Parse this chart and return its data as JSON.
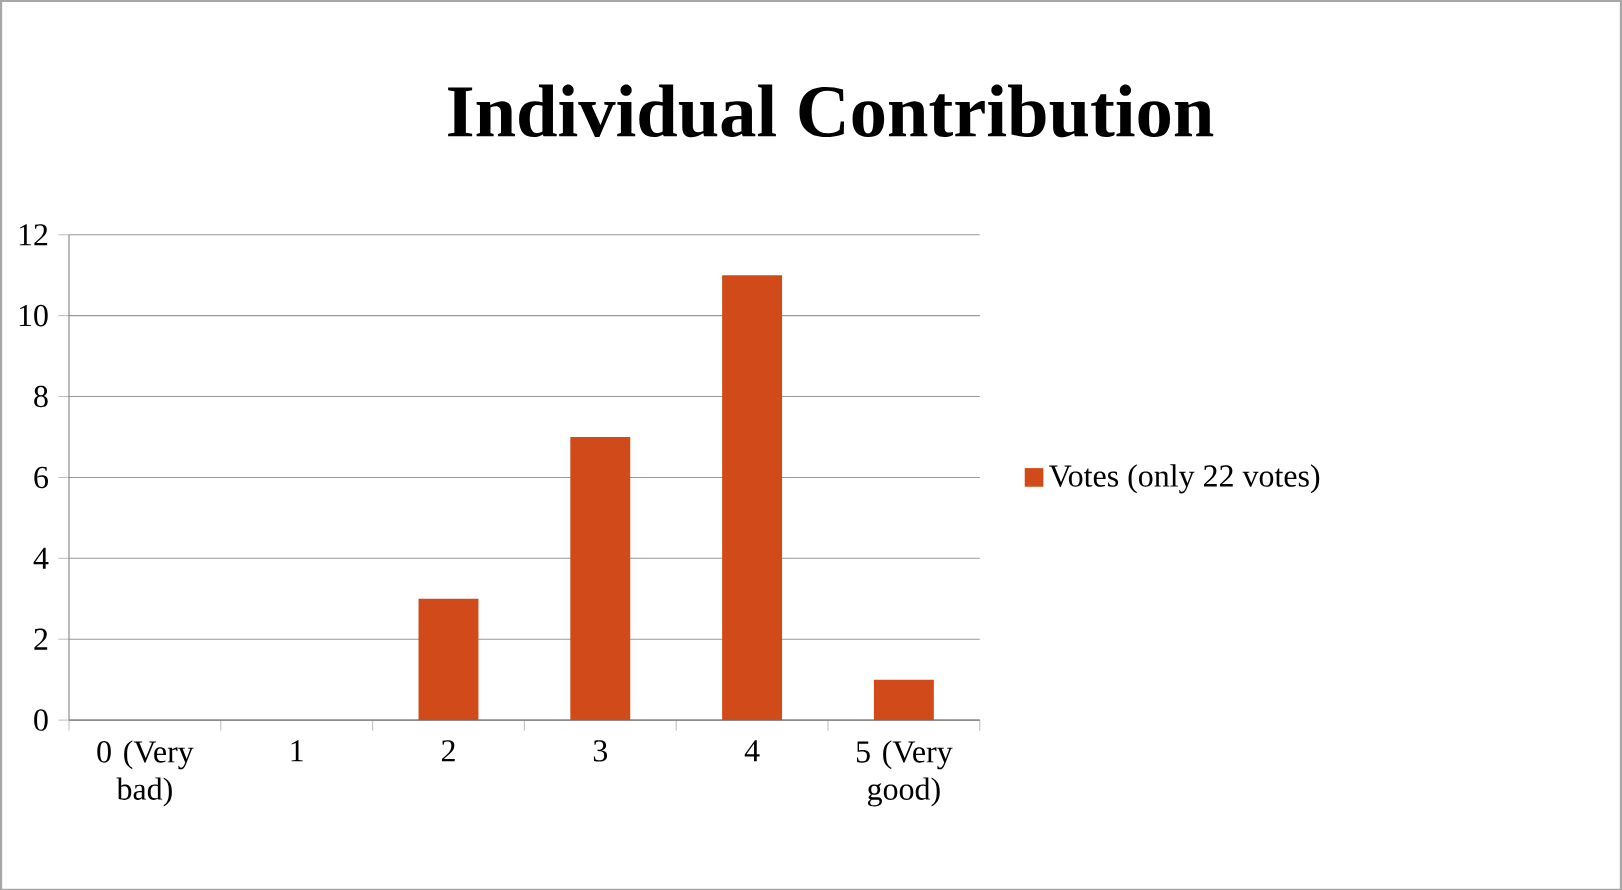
{
  "chart_data": {
    "type": "bar",
    "title": "Individual Contribution",
    "categories": [
      "0 (Very bad)",
      "1",
      "2",
      "3",
      "4",
      "5 (Very good)"
    ],
    "series": [
      {
        "name": "Votes (only 22 votes)",
        "color": "#d14a19",
        "values": [
          0,
          0,
          3,
          7,
          11,
          1
        ]
      }
    ],
    "ylim": [
      0,
      12
    ],
    "yticks": [
      0,
      2,
      4,
      6,
      8,
      10,
      12
    ],
    "grid": "y",
    "legend": "right"
  }
}
